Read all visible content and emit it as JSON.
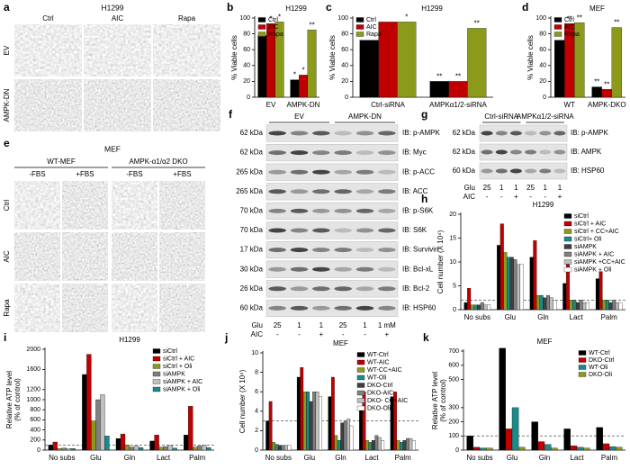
{
  "panel_labels": [
    "a",
    "b",
    "c",
    "d",
    "e",
    "f",
    "g",
    "h",
    "i",
    "j",
    "k"
  ],
  "panel_a": {
    "title": "H1299",
    "columns": [
      "Ctrl",
      "AIC",
      "Rapa"
    ],
    "rows": [
      "EV",
      "AMPK-DN"
    ]
  },
  "panel_e": {
    "title": "MEF",
    "groups": [
      "WT-MEF",
      "AMPK-α1/α2 DKO"
    ],
    "columns": [
      "-FBS",
      "+FBS",
      "-FBS",
      "+FBS"
    ],
    "rows": [
      "Ctrl",
      "AIC",
      "Rapa"
    ]
  },
  "panel_f": {
    "groups": [
      "EV",
      "AMPK-DN"
    ],
    "sizes": [
      "62 kDa",
      "62 kDa",
      "265 kDa",
      "265 kDa",
      "70 kDa",
      "70 kDa",
      "17 kDa",
      "30 kDa",
      "26 kDa",
      "60 kDa"
    ],
    "antibodies": [
      "IB: p-AMPK",
      "IB: Myc",
      "IB: p-ACC",
      "IB: ACC",
      "IB: p-S6K",
      "IB: S6K",
      "IB: Survivin",
      "IB: Bcl-xL",
      "IB: Bcl-2",
      "IB: HSP60"
    ],
    "glu_label": "Glu",
    "glu": [
      "25",
      "1",
      "1",
      "25",
      "1",
      "1 mM"
    ],
    "aic_label": "AIC",
    "aic": [
      "-",
      "-",
      "+",
      "-",
      "-",
      "+"
    ]
  },
  "panel_g": {
    "groups": [
      "Ctrl-siRNA",
      "AMPKα1/2-siRNA"
    ],
    "sizes": [
      "62 kDa",
      "62 kDa",
      "60 kDa"
    ],
    "antibodies": [
      "IB: p-AMPK",
      "IB: AMPK",
      "IB: HSP60"
    ],
    "glu_label": "Glu",
    "glu": [
      "25",
      "1",
      "1",
      "25",
      "1",
      "1"
    ],
    "aic_label": "AIC",
    "aic": [
      "-",
      "-",
      "+",
      "-",
      "-",
      "+"
    ]
  },
  "chart_data": [
    {
      "type": "bar",
      "title": "H1299",
      "ylabel": [
        "% Viable cells"
      ],
      "categories": [
        "EV",
        "AMPK-DN"
      ],
      "series": [
        {
          "name": "Ctrl",
          "color": "#000000",
          "values": [
            78,
            22
          ]
        },
        {
          "name": "AIC",
          "color": "#c00000",
          "values": [
            93,
            28
          ]
        },
        {
          "name": "Rapa",
          "color": "#8c9a1c",
          "values": [
            95,
            85
          ]
        }
      ],
      "ylim": [
        0,
        100
      ],
      "yticks": [
        0,
        20,
        40,
        60,
        80,
        100
      ],
      "legend": "upper left",
      "annotations": [
        {
          "text": "*",
          "series": 1,
          "category": 0
        },
        {
          "text": "*",
          "series": 2,
          "category": 0
        },
        {
          "text": "*",
          "series": 0,
          "category": 1
        },
        {
          "text": "*",
          "series": 1,
          "category": 1
        },
        {
          "text": "**",
          "series": 2,
          "category": 1
        }
      ]
    },
    {
      "type": "bar",
      "title": "H1299",
      "ylabel": [
        "% Viable cells"
      ],
      "categories": [
        "Ctrl-siRNA",
        "AMPKα1/2-siRNA"
      ],
      "series": [
        {
          "name": "Ctrl",
          "color": "#000000",
          "values": [
            72,
            20
          ]
        },
        {
          "name": "AIC",
          "color": "#c00000",
          "values": [
            95,
            20
          ]
        },
        {
          "name": "Rapa",
          "color": "#8c9a1c",
          "values": [
            95,
            87
          ]
        }
      ],
      "ylim": [
        0,
        100
      ],
      "yticks": [
        0,
        20,
        40,
        60,
        80,
        100
      ],
      "legend": "upper left",
      "annotations": [
        {
          "text": "*",
          "series": 2,
          "category": 0
        },
        {
          "text": "**",
          "series": 0,
          "category": 1
        },
        {
          "text": "**",
          "series": 1,
          "category": 1
        },
        {
          "text": "**",
          "series": 2,
          "category": 1
        }
      ]
    },
    {
      "type": "bar",
      "title": "MEF",
      "ylabel": [
        "% Viable cells"
      ],
      "categories": [
        "WT",
        "AMPK-DKO"
      ],
      "series": [
        {
          "name": "Ctrl",
          "color": "#000000",
          "values": [
            72,
            13
          ]
        },
        {
          "name": "AIC",
          "color": "#c00000",
          "values": [
            93,
            10
          ]
        },
        {
          "name": "Rapa",
          "color": "#8c9a1c",
          "values": [
            94,
            88
          ]
        }
      ],
      "ylim": [
        0,
        100
      ],
      "yticks": [
        0,
        20,
        40,
        60,
        80,
        100
      ],
      "legend": "upper left",
      "annotations": [
        {
          "text": "**",
          "series": 1,
          "category": 0
        },
        {
          "text": "**",
          "series": 2,
          "category": 0
        },
        {
          "text": "**",
          "series": 0,
          "category": 1
        },
        {
          "text": "**",
          "series": 1,
          "category": 1
        },
        {
          "text": "**",
          "series": 2,
          "category": 1
        }
      ]
    },
    {
      "type": "bar",
      "title": "H1299",
      "ylabel": [
        "Cell number (X 10⁴)"
      ],
      "categories": [
        "No subs",
        "Glu",
        "Gln",
        "Lact",
        "Palm"
      ],
      "series": [
        {
          "name": "siCtrl",
          "color": "#000000",
          "values": [
            1.5,
            13.5,
            11,
            5.5,
            6.5
          ]
        },
        {
          "name": "siCtrl + AIC",
          "color": "#c00000",
          "values": [
            4.5,
            18,
            14.5,
            9.5,
            8
          ]
        },
        {
          "name": "siCtrl + CC+AIC",
          "color": "#8c9a1c",
          "values": [
            1,
            12,
            3,
            2,
            2
          ]
        },
        {
          "name": "siCtrl+ Oli",
          "color": "#1a8a8a",
          "values": [
            1,
            11,
            3,
            2,
            2
          ]
        },
        {
          "name": "siAMPK",
          "color": "#404040",
          "values": [
            1,
            11,
            2.5,
            1.5,
            1.5
          ]
        },
        {
          "name": "siAMPK + AIC",
          "color": "#808080",
          "values": [
            1.5,
            10.5,
            3,
            2,
            2
          ]
        },
        {
          "name": "siAMPK +CC+AIC",
          "color": "#c0c0c0",
          "values": [
            1,
            9.5,
            2.5,
            1.5,
            1.5
          ]
        },
        {
          "name": "siAMPK + Oli",
          "color": "#ffffff",
          "values": [
            1,
            9.5,
            2,
            1.5,
            1.5
          ]
        }
      ],
      "ylim": [
        0,
        20
      ],
      "yticks": [
        0,
        5,
        10,
        15,
        20
      ],
      "legend": "upper right",
      "reference_line": 2
    },
    {
      "type": "bar",
      "title": "H1299",
      "ylabel": [
        "Relative ATP level",
        "(% of control)"
      ],
      "categories": [
        "No subs",
        "Glu",
        "Gln",
        "Lact",
        "Palm"
      ],
      "series": [
        {
          "name": "siCtrl",
          "color": "#000000",
          "values": [
            100,
            1500,
            230,
            180,
            300
          ]
        },
        {
          "name": "siCtrl + AIC",
          "color": "#c00000",
          "values": [
            160,
            1900,
            320,
            300,
            870
          ]
        },
        {
          "name": "siCtrl + Oli",
          "color": "#8c9a1c",
          "values": [
            30,
            580,
            100,
            60,
            60
          ]
        },
        {
          "name": "siAMPK",
          "color": "#808080",
          "values": [
            40,
            1000,
            60,
            70,
            80
          ]
        },
        {
          "name": "siAMPK + AIC",
          "color": "#c0c0c0",
          "values": [
            30,
            1100,
            80,
            90,
            100
          ]
        },
        {
          "name": "siAMPK + Oli",
          "color": "#1a8a8a",
          "values": [
            30,
            280,
            50,
            40,
            50
          ]
        }
      ],
      "ylim": [
        0,
        2000
      ],
      "yticks": [
        0,
        200,
        400,
        600,
        800,
        1000,
        1200,
        1600,
        2000
      ],
      "legend": "upper right",
      "reference_line": 100
    },
    {
      "type": "bar",
      "title": "MEF",
      "ylabel": [
        "Cell number (X 10⁴)"
      ],
      "categories": [
        "No subs",
        "Glu",
        "Gln",
        "Lact",
        "Palm"
      ],
      "series": [
        {
          "name": "WT-Ctrl",
          "color": "#000000",
          "values": [
            3,
            7.5,
            5.5,
            4.5,
            5.5
          ]
        },
        {
          "name": "WT-AIC",
          "color": "#c00000",
          "values": [
            5,
            8.5,
            7.5,
            6,
            6
          ]
        },
        {
          "name": "WT-CC+AIC",
          "color": "#8c9a1c",
          "values": [
            0.8,
            6,
            1.5,
            1,
            1
          ]
        },
        {
          "name": "WT-Oli",
          "color": "#1a8a8a",
          "values": [
            0.6,
            6,
            1,
            0.8,
            0.8
          ]
        },
        {
          "name": "DKO-Ctrl",
          "color": "#404040",
          "values": [
            0.5,
            5,
            2.8,
            1,
            1
          ]
        },
        {
          "name": "DKO-AIC",
          "color": "#808080",
          "values": [
            0.5,
            6,
            3,
            1.5,
            1.2
          ]
        },
        {
          "name": "DKO- CC+AIC",
          "color": "#c0c0c0",
          "values": [
            0.5,
            6,
            3.2,
            1.3,
            1.2
          ]
        },
        {
          "name": "DKO-Oli",
          "color": "#ffffff",
          "values": [
            0.5,
            5.5,
            2.5,
            1,
            1
          ]
        }
      ],
      "ylim": [
        0,
        10
      ],
      "yticks": [
        0,
        2,
        4,
        6,
        8,
        10
      ],
      "legend": "upper right",
      "reference_line": 3
    },
    {
      "type": "bar",
      "title": "MEF",
      "ylabel": [
        "Relative ATP level",
        "(% of control)"
      ],
      "categories": [
        "No subs",
        "Glu",
        "Gln",
        "Lact",
        "Palm"
      ],
      "series": [
        {
          "name": "WT-Ctrl",
          "color": "#000000",
          "values": [
            100,
            720,
            200,
            150,
            160
          ]
        },
        {
          "name": "DKO-Ctrl",
          "color": "#c00000",
          "values": [
            20,
            150,
            60,
            30,
            45
          ]
        },
        {
          "name": "WT-Oli",
          "color": "#1a8a8a",
          "values": [
            15,
            300,
            40,
            20,
            25
          ]
        },
        {
          "name": "DKO-Oli",
          "color": "#8c9a1c",
          "values": [
            15,
            20,
            15,
            15,
            20
          ]
        }
      ],
      "ylim": [
        0,
        700
      ],
      "yticks": [
        0,
        100,
        200,
        300,
        500,
        600,
        700
      ],
      "legend": "upper right",
      "reference_line": 100
    }
  ]
}
